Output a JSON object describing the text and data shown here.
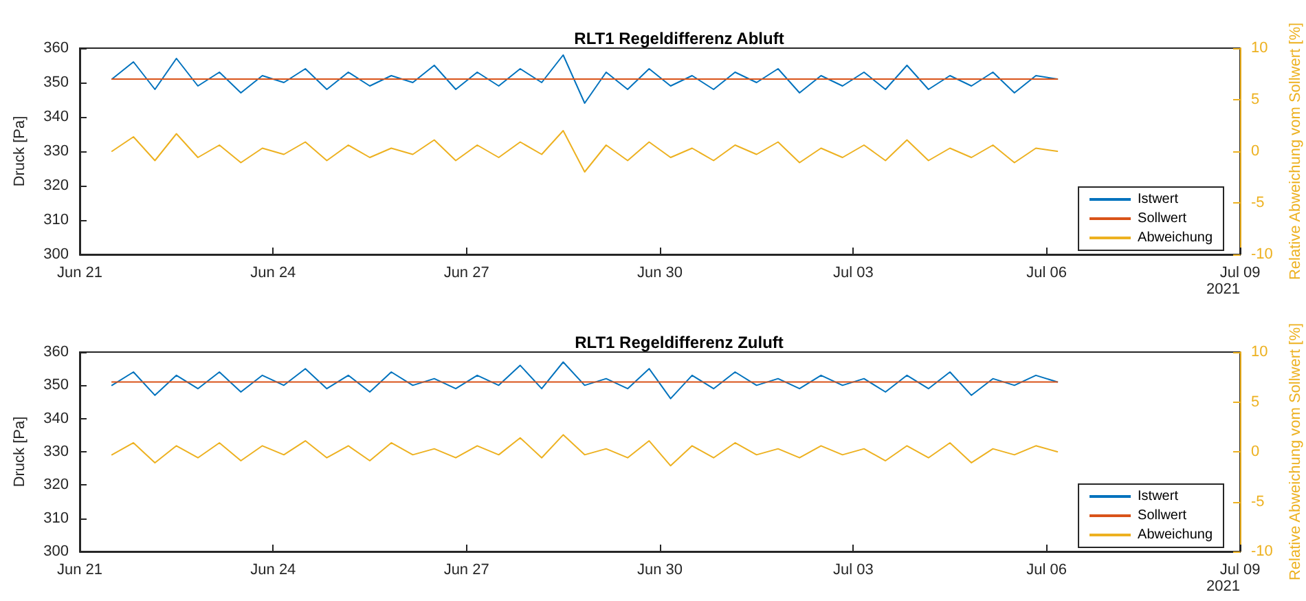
{
  "chart_data": [
    {
      "type": "line",
      "title": "RLT1 Regeldifferenz Abluft",
      "ylabel": "Druck [Pa]",
      "y2label": "Relative Abweichung vom Sollwert [%]",
      "annotations": [
        "2021"
      ],
      "x": [
        "2021-06-21T12:00",
        "2021-06-21T20:00",
        "2021-06-22T04:00",
        "2021-06-22T12:00",
        "2021-06-22T20:00",
        "2021-06-23T04:00",
        "2021-06-23T12:00",
        "2021-06-23T20:00",
        "2021-06-24T04:00",
        "2021-06-24T12:00",
        "2021-06-24T20:00",
        "2021-06-25T04:00",
        "2021-06-25T12:00",
        "2021-06-25T20:00",
        "2021-06-26T04:00",
        "2021-06-26T12:00",
        "2021-06-26T20:00",
        "2021-06-27T04:00",
        "2021-06-27T12:00",
        "2021-06-27T20:00",
        "2021-06-28T04:00",
        "2021-06-28T12:00",
        "2021-06-28T20:00",
        "2021-06-29T04:00",
        "2021-06-29T12:00",
        "2021-06-29T20:00",
        "2021-06-30T04:00",
        "2021-06-30T12:00",
        "2021-06-30T20:00",
        "2021-07-01T04:00",
        "2021-07-01T12:00",
        "2021-07-01T20:00",
        "2021-07-02T04:00",
        "2021-07-02T12:00",
        "2021-07-02T20:00",
        "2021-07-03T04:00",
        "2021-07-03T12:00",
        "2021-07-03T20:00",
        "2021-07-04T04:00",
        "2021-07-04T12:00",
        "2021-07-04T20:00",
        "2021-07-05T04:00",
        "2021-07-05T12:00",
        "2021-07-05T20:00",
        "2021-07-06T04:00"
      ],
      "series": [
        {
          "name": "Istwert",
          "color": "#0072bd",
          "values": [
            351,
            356,
            348,
            357,
            349,
            353,
            347,
            352,
            350,
            354,
            348,
            353,
            349,
            352,
            350,
            355,
            348,
            353,
            349,
            354,
            350,
            358,
            344,
            353,
            348,
            354,
            349,
            352,
            348,
            353,
            350,
            354,
            347,
            352,
            349,
            353,
            348,
            355,
            348,
            352,
            349,
            353,
            347,
            352,
            351
          ]
        },
        {
          "name": "Sollwert",
          "color": "#d95319",
          "x": [
            "2021-06-21T12:00",
            "2021-07-06T04:00"
          ],
          "values": [
            351,
            351
          ]
        },
        {
          "name": "Abweichung",
          "color": "#edb120",
          "axis": "y2",
          "values": [
            0,
            1.4,
            -0.9,
            1.7,
            -0.6,
            0.6,
            -1.1,
            0.3,
            -0.3,
            0.9,
            -0.9,
            0.6,
            -0.6,
            0.3,
            -0.3,
            1.1,
            -0.9,
            0.6,
            -0.6,
            0.9,
            -0.3,
            2,
            -2,
            0.6,
            -0.9,
            0.9,
            -0.6,
            0.3,
            -0.9,
            0.6,
            -0.3,
            0.9,
            -1.1,
            0.3,
            -0.6,
            0.6,
            -0.9,
            1.1,
            -0.9,
            0.3,
            -0.6,
            0.6,
            -1.1,
            0.3,
            0
          ]
        }
      ],
      "xlim": [
        "2021-06-21",
        "2021-07-09"
      ],
      "xticks": [
        {
          "value": "2021-06-21",
          "label": "Jun 21"
        },
        {
          "value": "2021-06-24",
          "label": "Jun 24"
        },
        {
          "value": "2021-06-27",
          "label": "Jun 27"
        },
        {
          "value": "2021-06-30",
          "label": "Jun 30"
        },
        {
          "value": "2021-07-03",
          "label": "Jul 03"
        },
        {
          "value": "2021-07-06",
          "label": "Jul 06"
        },
        {
          "value": "2021-07-09",
          "label": "Jul 09"
        }
      ],
      "ylim": [
        300,
        360
      ],
      "yticks": [
        300,
        310,
        320,
        330,
        340,
        350,
        360
      ],
      "y2lim": [
        -10,
        10
      ],
      "y2ticks": [
        -10,
        -5,
        0,
        5,
        10
      ],
      "legend": "bottom right",
      "marker": "none",
      "line_style": "solid"
    },
    {
      "type": "line",
      "title": "RLT1 Regeldifferenz Zuluft",
      "ylabel": "Druck [Pa]",
      "y2label": "Relative Abweichung vom Sollwert [%]",
      "annotations": [
        "2021"
      ],
      "x": [
        "2021-06-21T12:00",
        "2021-06-21T20:00",
        "2021-06-22T04:00",
        "2021-06-22T12:00",
        "2021-06-22T20:00",
        "2021-06-23T04:00",
        "2021-06-23T12:00",
        "2021-06-23T20:00",
        "2021-06-24T04:00",
        "2021-06-24T12:00",
        "2021-06-24T20:00",
        "2021-06-25T04:00",
        "2021-06-25T12:00",
        "2021-06-25T20:00",
        "2021-06-26T04:00",
        "2021-06-26T12:00",
        "2021-06-26T20:00",
        "2021-06-27T04:00",
        "2021-06-27T12:00",
        "2021-06-27T20:00",
        "2021-06-28T04:00",
        "2021-06-28T12:00",
        "2021-06-28T20:00",
        "2021-06-29T04:00",
        "2021-06-29T12:00",
        "2021-06-29T20:00",
        "2021-06-30T04:00",
        "2021-06-30T12:00",
        "2021-06-30T20:00",
        "2021-07-01T04:00",
        "2021-07-01T12:00",
        "2021-07-01T20:00",
        "2021-07-02T04:00",
        "2021-07-02T12:00",
        "2021-07-02T20:00",
        "2021-07-03T04:00",
        "2021-07-03T12:00",
        "2021-07-03T20:00",
        "2021-07-04T04:00",
        "2021-07-04T12:00",
        "2021-07-04T20:00",
        "2021-07-05T04:00",
        "2021-07-05T12:00",
        "2021-07-05T20:00",
        "2021-07-06T04:00"
      ],
      "series": [
        {
          "name": "Istwert",
          "color": "#0072bd",
          "values": [
            350,
            354,
            347,
            353,
            349,
            354,
            348,
            353,
            350,
            355,
            349,
            353,
            348,
            354,
            350,
            352,
            349,
            353,
            350,
            356,
            349,
            357,
            350,
            352,
            349,
            355,
            346,
            353,
            349,
            354,
            350,
            352,
            349,
            353,
            350,
            352,
            348,
            353,
            349,
            354,
            347,
            352,
            350,
            353,
            351
          ]
        },
        {
          "name": "Sollwert",
          "color": "#d95319",
          "x": [
            "2021-06-21T12:00",
            "2021-07-06T04:00"
          ],
          "values": [
            351,
            351
          ]
        },
        {
          "name": "Abweichung",
          "color": "#edb120",
          "axis": "y2",
          "values": [
            -0.3,
            0.9,
            -1.1,
            0.6,
            -0.6,
            0.9,
            -0.9,
            0.6,
            -0.3,
            1.1,
            -0.6,
            0.6,
            -0.9,
            0.9,
            -0.3,
            0.3,
            -0.6,
            0.6,
            -0.3,
            1.4,
            -0.6,
            1.7,
            -0.3,
            0.3,
            -0.6,
            1.1,
            -1.4,
            0.6,
            -0.6,
            0.9,
            -0.3,
            0.3,
            -0.6,
            0.6,
            -0.3,
            0.3,
            -0.9,
            0.6,
            -0.6,
            0.9,
            -1.1,
            0.3,
            -0.3,
            0.6,
            0
          ]
        }
      ],
      "xlim": [
        "2021-06-21",
        "2021-07-09"
      ],
      "xticks": [
        {
          "value": "2021-06-21",
          "label": "Jun 21"
        },
        {
          "value": "2021-06-24",
          "label": "Jun 24"
        },
        {
          "value": "2021-06-27",
          "label": "Jun 27"
        },
        {
          "value": "2021-06-30",
          "label": "Jun 30"
        },
        {
          "value": "2021-07-03",
          "label": "Jul 03"
        },
        {
          "value": "2021-07-06",
          "label": "Jul 06"
        },
        {
          "value": "2021-07-09",
          "label": "Jul 09"
        }
      ],
      "ylim": [
        300,
        360
      ],
      "yticks": [
        300,
        310,
        320,
        330,
        340,
        350,
        360
      ],
      "y2lim": [
        -10,
        10
      ],
      "y2ticks": [
        -10,
        -5,
        0,
        5,
        10
      ],
      "legend": "bottom right",
      "marker": "none",
      "line_style": "solid"
    }
  ]
}
